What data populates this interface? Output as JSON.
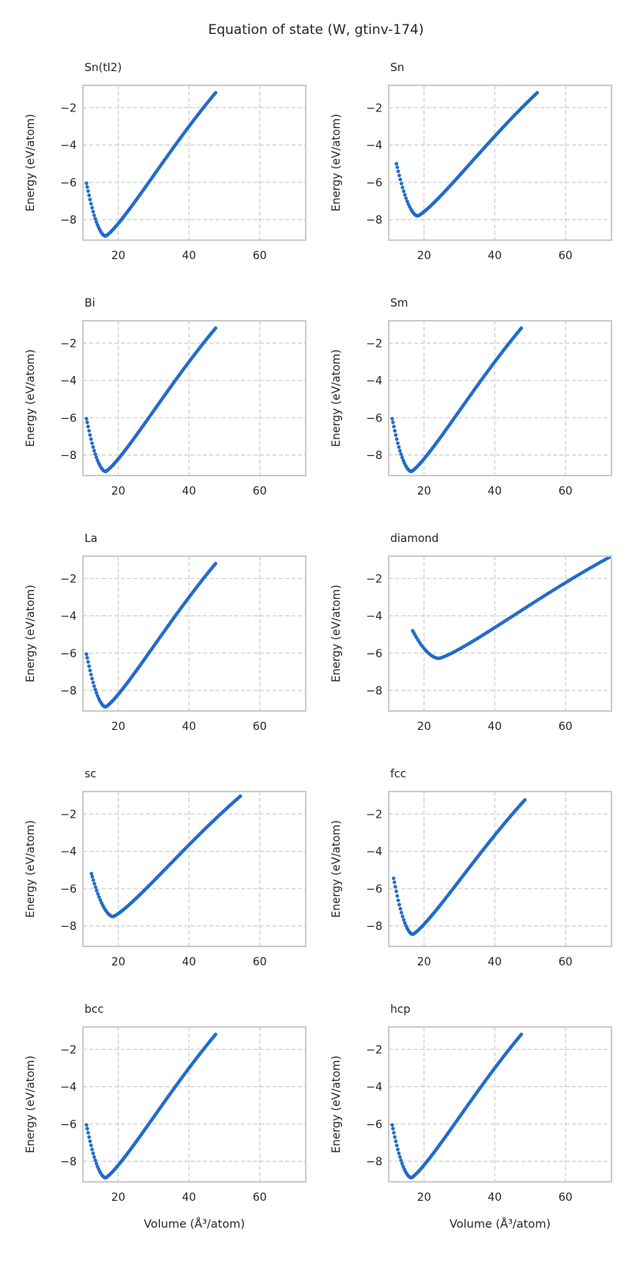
{
  "figure": {
    "title": "Equation of state (W, gtinv-174)",
    "xlabel": "Volume (Å³/atom)",
    "ylabel": "Energy (eV/atom)"
  },
  "chart_data": [
    {
      "type": "scatter",
      "title": "Sn(tI2)",
      "xlabel": "",
      "ylabel": "Energy (eV/atom)",
      "xlim": [
        10,
        73
      ],
      "ylim": [
        -9.1,
        -0.8
      ],
      "xticks": [
        20,
        40,
        60
      ],
      "yticks": [
        -2,
        -4,
        -6,
        -8
      ],
      "grid": true,
      "color": "#1f6fd1",
      "curve": {
        "v_start": 11.0,
        "e_start": -6.05,
        "v0": 16.4,
        "e0": -8.88,
        "v_end": 47.5,
        "e_end": -1.2,
        "n": 100
      }
    },
    {
      "type": "scatter",
      "title": "Sn",
      "xlabel": "",
      "ylabel": "Energy (eV/atom)",
      "xlim": [
        10,
        73
      ],
      "ylim": [
        -9.1,
        -0.8
      ],
      "xticks": [
        20,
        40,
        60
      ],
      "yticks": [
        -2,
        -4,
        -6,
        -8
      ],
      "grid": true,
      "color": "#1f6fd1",
      "curve": {
        "v_start": 12.2,
        "e_start": -5.0,
        "v0": 18.2,
        "e0": -7.8,
        "v_end": 52.0,
        "e_end": -1.2,
        "n": 100
      }
    },
    {
      "type": "scatter",
      "title": "Bi",
      "xlabel": "",
      "ylabel": "Energy (eV/atom)",
      "xlim": [
        10,
        73
      ],
      "ylim": [
        -9.1,
        -0.8
      ],
      "xticks": [
        20,
        40,
        60
      ],
      "yticks": [
        -2,
        -4,
        -6,
        -8
      ],
      "grid": true,
      "color": "#1f6fd1",
      "curve": {
        "v_start": 11.0,
        "e_start": -6.05,
        "v0": 16.4,
        "e0": -8.88,
        "v_end": 47.5,
        "e_end": -1.2,
        "n": 100
      }
    },
    {
      "type": "scatter",
      "title": "Sm",
      "xlabel": "",
      "ylabel": "Energy (eV/atom)",
      "xlim": [
        10,
        73
      ],
      "ylim": [
        -9.1,
        -0.8
      ],
      "xticks": [
        20,
        40,
        60
      ],
      "yticks": [
        -2,
        -4,
        -6,
        -8
      ],
      "grid": true,
      "color": "#1f6fd1",
      "curve": {
        "v_start": 11.0,
        "e_start": -6.05,
        "v0": 16.4,
        "e0": -8.88,
        "v_end": 47.5,
        "e_end": -1.2,
        "n": 100
      }
    },
    {
      "type": "scatter",
      "title": "La",
      "xlabel": "",
      "ylabel": "Energy (eV/atom)",
      "xlim": [
        10,
        73
      ],
      "ylim": [
        -9.1,
        -0.8
      ],
      "xticks": [
        20,
        40,
        60
      ],
      "yticks": [
        -2,
        -4,
        -6,
        -8
      ],
      "grid": true,
      "color": "#1f6fd1",
      "curve": {
        "v_start": 11.0,
        "e_start": -6.05,
        "v0": 16.4,
        "e0": -8.88,
        "v_end": 47.5,
        "e_end": -1.2,
        "n": 100
      }
    },
    {
      "type": "scatter",
      "title": "diamond",
      "xlabel": "",
      "ylabel": "Energy (eV/atom)",
      "xlim": [
        10,
        73
      ],
      "ylim": [
        -9.1,
        -0.8
      ],
      "xticks": [
        20,
        40,
        60
      ],
      "yticks": [
        -2,
        -4,
        -6,
        -8
      ],
      "grid": true,
      "color": "#1f6fd1",
      "curve": {
        "v_start": 16.8,
        "e_start": -4.8,
        "v0": 24.2,
        "e0": -6.28,
        "v_end": 72.5,
        "e_end": -0.85,
        "n": 100
      }
    },
    {
      "type": "scatter",
      "title": "sc",
      "xlabel": "",
      "ylabel": "Energy (eV/atom)",
      "xlim": [
        10,
        73
      ],
      "ylim": [
        -9.1,
        -0.8
      ],
      "xticks": [
        20,
        40,
        60
      ],
      "yticks": [
        -2,
        -4,
        -6,
        -8
      ],
      "grid": true,
      "color": "#1f6fd1",
      "curve": {
        "v_start": 12.4,
        "e_start": -5.2,
        "v0": 18.5,
        "e0": -7.5,
        "v_end": 54.5,
        "e_end": -1.05,
        "n": 100
      }
    },
    {
      "type": "scatter",
      "title": "fcc",
      "xlabel": "",
      "ylabel": "Energy (eV/atom)",
      "xlim": [
        10,
        73
      ],
      "ylim": [
        -9.1,
        -0.8
      ],
      "xticks": [
        20,
        40,
        60
      ],
      "yticks": [
        -2,
        -4,
        -6,
        -8
      ],
      "grid": true,
      "color": "#1f6fd1",
      "curve": {
        "v_start": 11.4,
        "e_start": -5.45,
        "v0": 16.8,
        "e0": -8.45,
        "v_end": 48.5,
        "e_end": -1.25,
        "n": 100
      }
    },
    {
      "type": "scatter",
      "title": "bcc",
      "xlabel": "Volume (Å³/atom)",
      "ylabel": "Energy (eV/atom)",
      "xlim": [
        10,
        73
      ],
      "ylim": [
        -9.1,
        -0.8
      ],
      "xticks": [
        20,
        40,
        60
      ],
      "yticks": [
        -2,
        -4,
        -6,
        -8
      ],
      "grid": true,
      "color": "#1f6fd1",
      "curve": {
        "v_start": 11.0,
        "e_start": -6.05,
        "v0": 16.4,
        "e0": -8.88,
        "v_end": 47.5,
        "e_end": -1.2,
        "n": 100
      }
    },
    {
      "type": "scatter",
      "title": "hcp",
      "xlabel": "Volume (Å³/atom)",
      "ylabel": "Energy (eV/atom)",
      "xlim": [
        10,
        73
      ],
      "ylim": [
        -9.1,
        -0.8
      ],
      "xticks": [
        20,
        40,
        60
      ],
      "yticks": [
        -2,
        -4,
        -6,
        -8
      ],
      "grid": true,
      "color": "#1f6fd1",
      "curve": {
        "v_start": 11.0,
        "e_start": -6.05,
        "v0": 16.4,
        "e0": -8.88,
        "v_end": 47.5,
        "e_end": -1.2,
        "n": 100
      }
    }
  ]
}
